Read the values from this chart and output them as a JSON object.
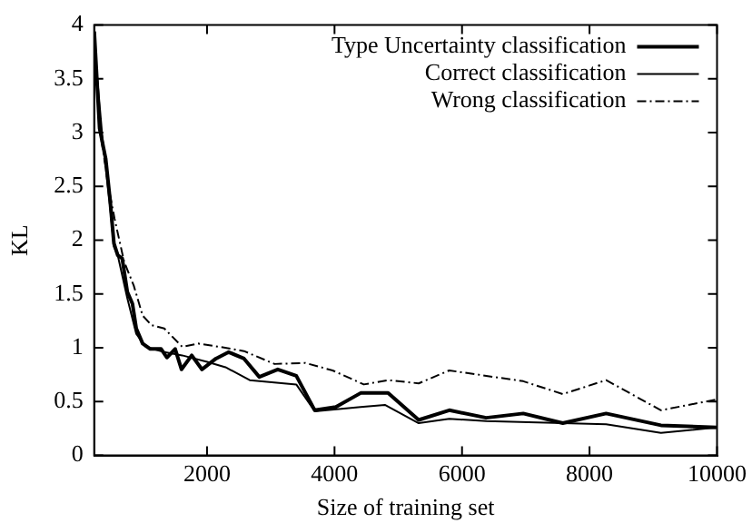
{
  "chart_data": {
    "type": "line",
    "xlabel": "Size of training set",
    "ylabel": "KL",
    "xlim": [
      230,
      10000
    ],
    "xticks": [
      2000,
      4000,
      6000,
      8000,
      10000
    ],
    "ylim": [
      0,
      4
    ],
    "yticks": [
      0,
      0.5,
      1,
      1.5,
      2,
      2.5,
      3,
      3.5,
      4
    ],
    "grid": false,
    "legend": "top right",
    "marker": "none",
    "series": [
      {
        "name": "Type Uncertainty classification",
        "color": "#000000",
        "line_style": "solid",
        "x": [
          231,
          315,
          410,
          480,
          540,
          600,
          670,
          750,
          830,
          890,
          990,
          1110,
          1280,
          1370,
          1500,
          1600,
          1760,
          1920,
          2140,
          2340,
          2580,
          2820,
          3110,
          3400,
          3690,
          4020,
          4410,
          4840,
          5320,
          5800,
          6380,
          6960,
          7580,
          8260,
          9120,
          9990
        ],
        "values": [
          3.94,
          3.04,
          2.76,
          2.37,
          1.97,
          1.86,
          1.83,
          1.52,
          1.41,
          1.18,
          1.04,
          0.99,
          0.99,
          0.91,
          0.99,
          0.8,
          0.93,
          0.8,
          0.9,
          0.96,
          0.9,
          0.73,
          0.8,
          0.74,
          0.42,
          0.45,
          0.58,
          0.58,
          0.33,
          0.42,
          0.35,
          0.39,
          0.3,
          0.39,
          0.28,
          0.26
        ]
      },
      {
        "name": "Correct classification",
        "color": "#000000",
        "line_style": "solid",
        "x": [
          231,
          363,
          480,
          540,
          600,
          750,
          890,
          1040,
          1330,
          1610,
          2000,
          2290,
          2670,
          3400,
          3690,
          4410,
          4790,
          5320,
          5800,
          6380,
          7580,
          8260,
          9120,
          9990
        ],
        "values": [
          3.83,
          2.93,
          2.31,
          1.94,
          1.86,
          1.46,
          1.13,
          1.01,
          0.96,
          0.93,
          0.87,
          0.82,
          0.7,
          0.66,
          0.41,
          0.45,
          0.47,
          0.3,
          0.34,
          0.32,
          0.3,
          0.29,
          0.21,
          0.26
        ]
      },
      {
        "name": "Wrong classification",
        "color": "#000000",
        "line_style": "dashed",
        "x": [
          231,
          315,
          460,
          550,
          700,
          850,
          990,
          1130,
          1330,
          1610,
          1860,
          2190,
          2580,
          3060,
          3540,
          3970,
          4460,
          4840,
          5320,
          5800,
          6380,
          6960,
          7580,
          8260,
          9120,
          9990
        ],
        "values": [
          3.94,
          3.04,
          2.48,
          2.2,
          1.8,
          1.58,
          1.3,
          1.21,
          1.18,
          1.01,
          1.04,
          1.01,
          0.97,
          0.85,
          0.86,
          0.79,
          0.66,
          0.7,
          0.67,
          0.79,
          0.74,
          0.69,
          0.57,
          0.7,
          0.42,
          0.52
        ]
      }
    ]
  }
}
